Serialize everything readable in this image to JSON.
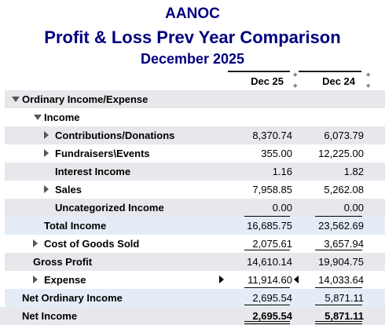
{
  "report": {
    "company": "AANOC",
    "title": "Profit & Loss Prev Year Comparison",
    "period": "December 2025"
  },
  "columns": {
    "col1": "Dec 25",
    "col2": "Dec 24"
  },
  "rows": [
    {
      "label": "Ordinary Income/Expense",
      "v1": "",
      "v2": ""
    },
    {
      "label": "Income",
      "v1": "",
      "v2": ""
    },
    {
      "label": "Contributions/Donations",
      "v1": "8,370.74",
      "v2": "6,073.79"
    },
    {
      "label": "Fundraisers\\Events",
      "v1": "355.00",
      "v2": "12,225.00"
    },
    {
      "label": "Interest Income",
      "v1": "1.16",
      "v2": "1.82"
    },
    {
      "label": "Sales",
      "v1": "7,958.85",
      "v2": "5,262.08"
    },
    {
      "label": "Uncategorized Income",
      "v1": "0.00",
      "v2": "0.00"
    },
    {
      "label": "Total Income",
      "v1": "16,685.75",
      "v2": "23,562.69"
    },
    {
      "label": "Cost of Goods Sold",
      "v1": "2,075.61",
      "v2": "3,657.94"
    },
    {
      "label": "Gross Profit",
      "v1": "14,610.14",
      "v2": "19,904.75"
    },
    {
      "label": "Expense",
      "v1": "11,914.60",
      "v2": "14,033.64"
    },
    {
      "label": "Net Ordinary Income",
      "v1": "2,695.54",
      "v2": "5,871.11"
    },
    {
      "label": "Net Income",
      "v1": "2,695.54",
      "v2": "5,871.11"
    }
  ]
}
